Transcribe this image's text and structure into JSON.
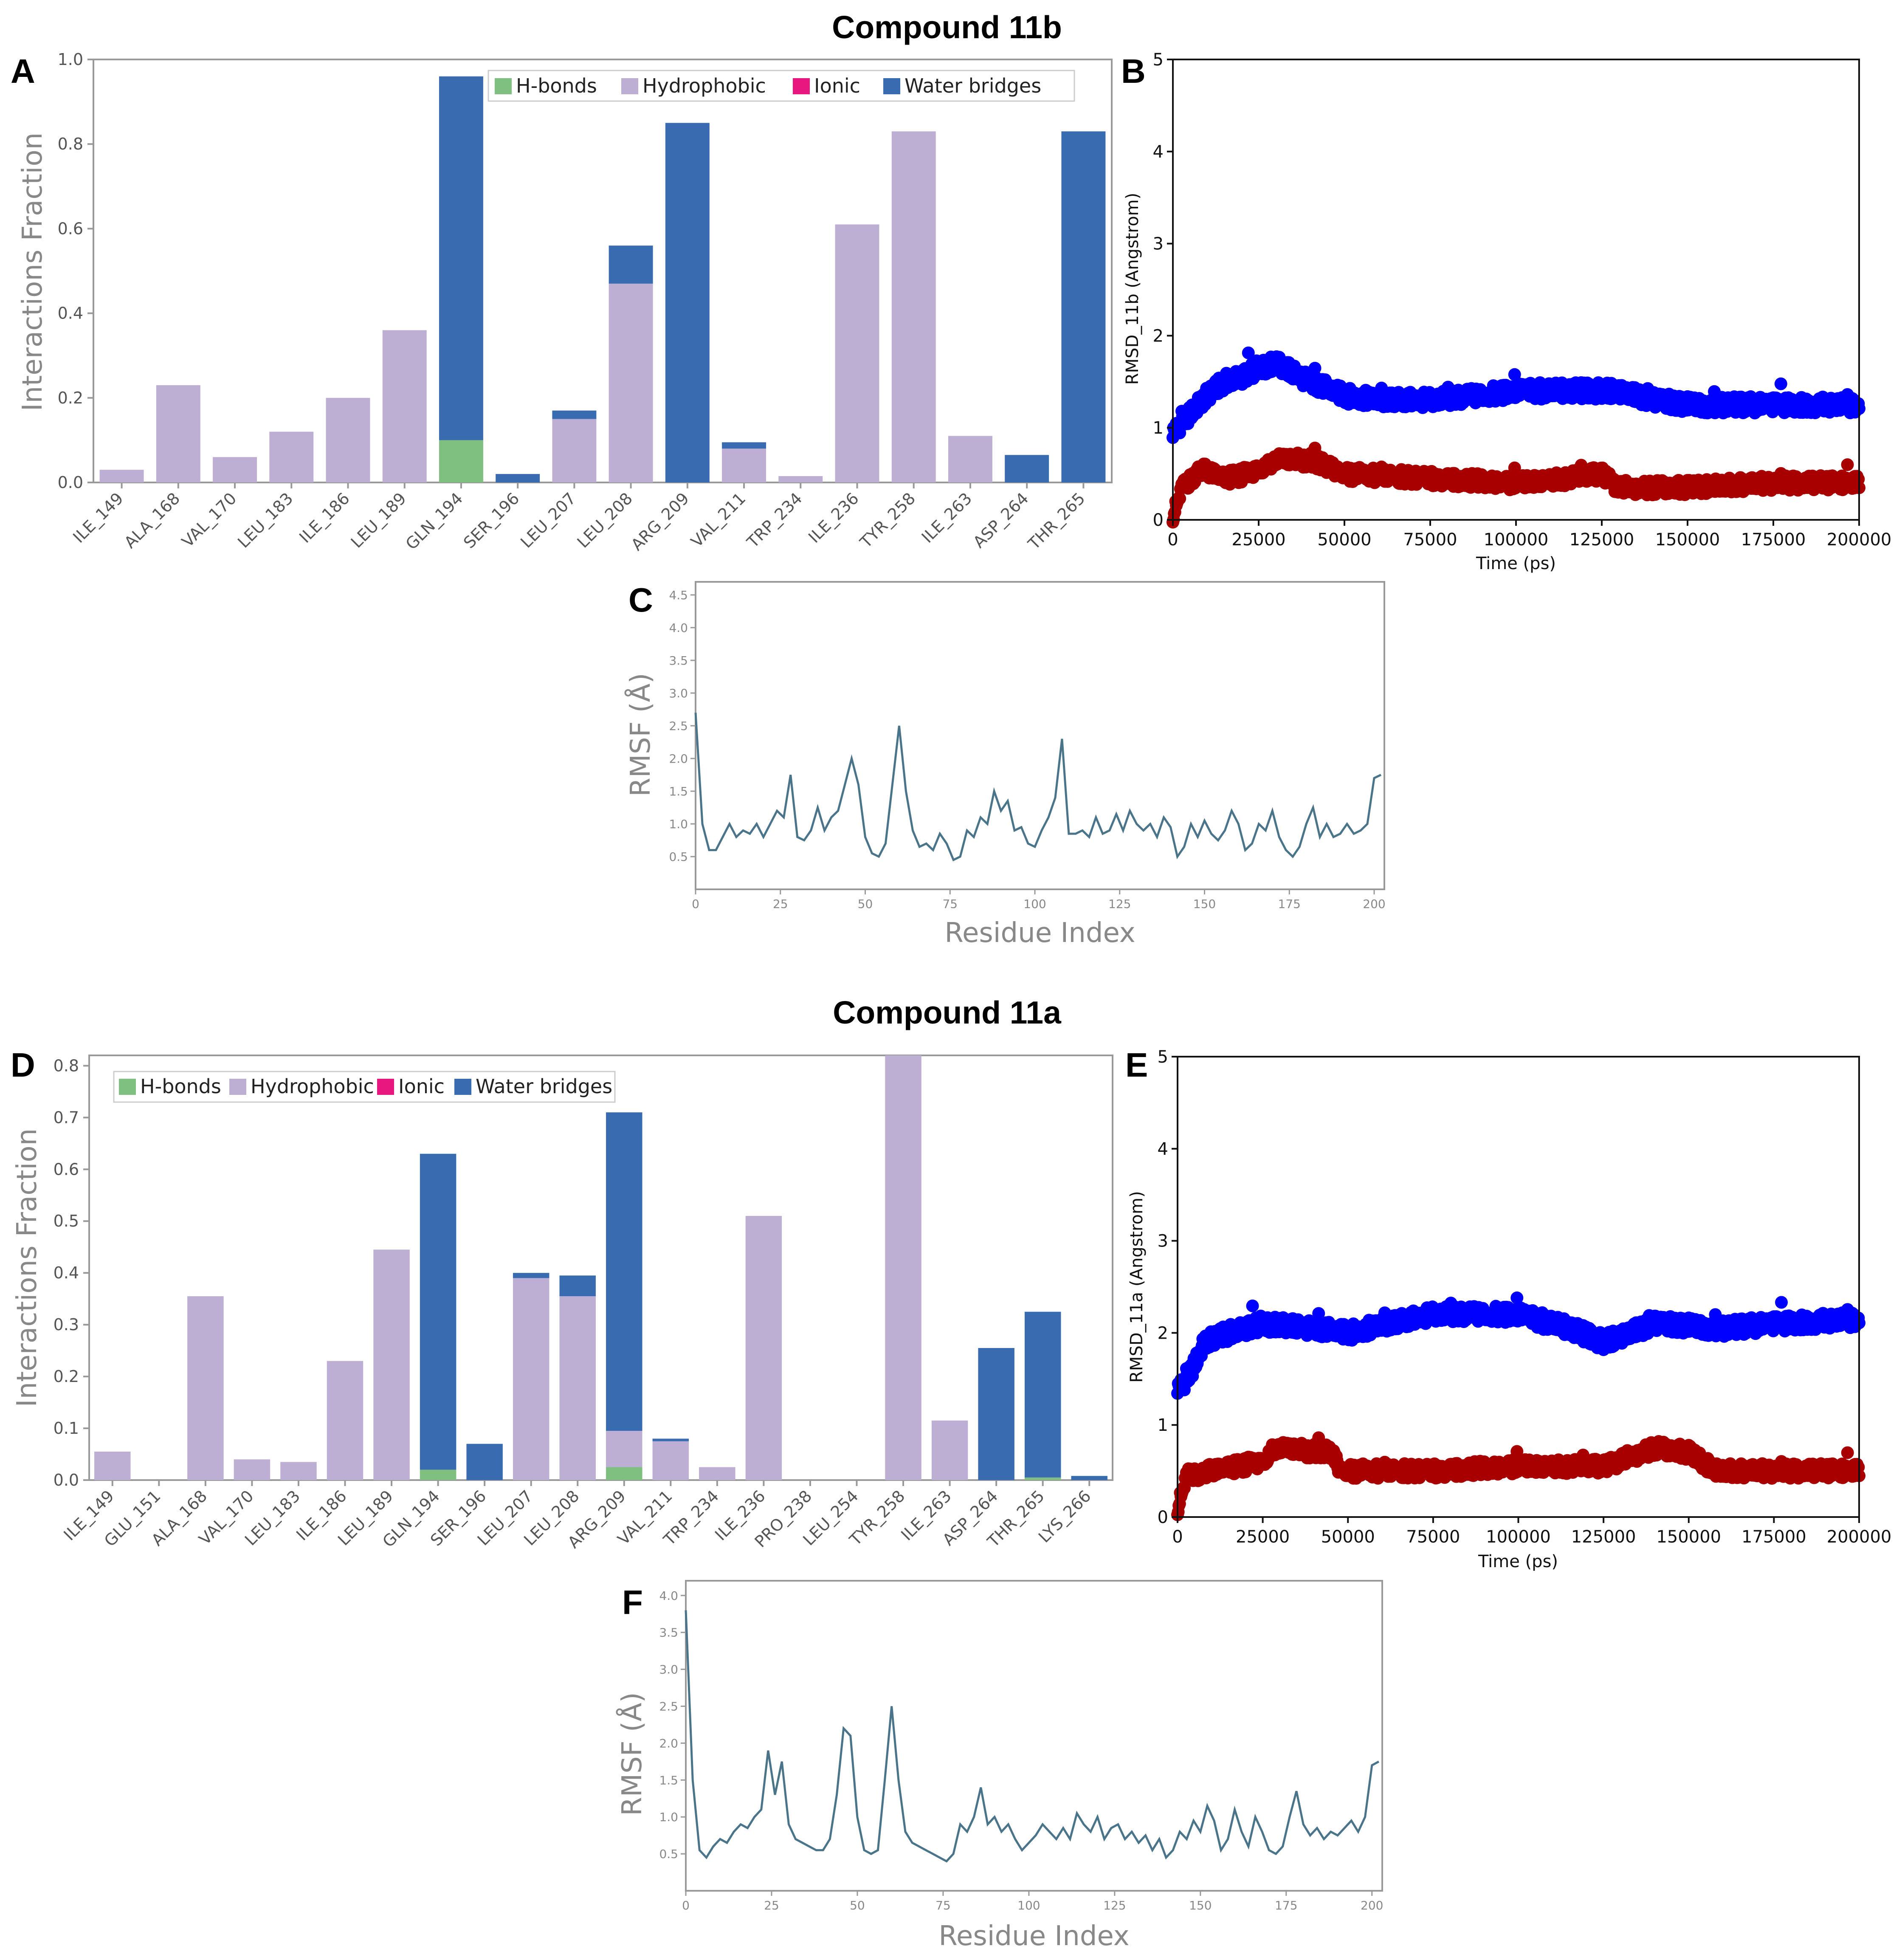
{
  "titles": {
    "top": "Compound 11b",
    "bottom": "Compound 11a"
  },
  "panel_labels": [
    "A",
    "B",
    "C",
    "D",
    "E",
    "F"
  ],
  "legend": {
    "hbonds": "H-bonds",
    "hydrophobic": "Hydrophobic",
    "ionic": "Ionic",
    "water": "Water bridges"
  },
  "colors": {
    "hbonds": "#7fbf7f",
    "hydrophobic": "#bdaed4",
    "ionic": "#e8177f",
    "water": "#386bb0",
    "rmsd_protein": "#0000ff",
    "rmsd_ligand": "#a80000",
    "rmsf_line": "#4a7489"
  },
  "chart_data": [
    {
      "id": "A",
      "type": "bar",
      "stacked": true,
      "ylabel": "Interactions Fraction",
      "xlabel": "",
      "ylim": [
        0,
        1.0
      ],
      "yticks": [
        "0.0",
        "0.2",
        "0.4",
        "0.6",
        "0.8",
        "1.0"
      ],
      "categories": [
        "ILE_149",
        "ALA_168",
        "VAL_170",
        "LEU_183",
        "ILE_186",
        "LEU_189",
        "GLN_194",
        "SER_196",
        "LEU_207",
        "LEU_208",
        "ARG_209",
        "VAL_211",
        "TRP_234",
        "ILE_236",
        "TYR_258",
        "ILE_263",
        "ASP_264",
        "THR_265"
      ],
      "series": [
        {
          "name": "H-bonds",
          "values": [
            0,
            0,
            0,
            0,
            0,
            0,
            0.1,
            0,
            0,
            0,
            0,
            0,
            0,
            0,
            0,
            0,
            0,
            0
          ]
        },
        {
          "name": "Hydrophobic",
          "values": [
            0.03,
            0.23,
            0.06,
            0.12,
            0.2,
            0.36,
            0,
            0,
            0.15,
            0.47,
            0,
            0.08,
            0.015,
            0.61,
            0.83,
            0.11,
            0,
            0
          ]
        },
        {
          "name": "Ionic",
          "values": [
            0,
            0,
            0,
            0,
            0,
            0,
            0,
            0,
            0,
            0,
            0,
            0,
            0,
            0,
            0,
            0,
            0,
            0
          ]
        },
        {
          "name": "Water bridges",
          "values": [
            0,
            0,
            0,
            0,
            0,
            0,
            0.86,
            0.02,
            0.02,
            0.09,
            0.85,
            0.015,
            0,
            0,
            0,
            0,
            0.065,
            0.83
          ]
        }
      ]
    },
    {
      "id": "B",
      "type": "scatter",
      "xlabel": "Time (ps)",
      "ylabel": "RMSD_11b (Angstrom)",
      "xlim": [
        0,
        200000
      ],
      "ylim": [
        0,
        5
      ],
      "xticks": [
        "0",
        "25000",
        "50000",
        "75000",
        "100000",
        "125000",
        "150000",
        "175000",
        "200000"
      ],
      "yticks": [
        "0",
        "1",
        "2",
        "3",
        "4",
        "5"
      ],
      "series": [
        {
          "name": "protein",
          "profile": [
            [
              0,
              0.95
            ],
            [
              5000,
              1.15
            ],
            [
              10000,
              1.35
            ],
            [
              15000,
              1.5
            ],
            [
              20000,
              1.55
            ],
            [
              25000,
              1.65
            ],
            [
              30000,
              1.7
            ],
            [
              35000,
              1.6
            ],
            [
              40000,
              1.5
            ],
            [
              50000,
              1.35
            ],
            [
              60000,
              1.3
            ],
            [
              75000,
              1.3
            ],
            [
              90000,
              1.35
            ],
            [
              100000,
              1.4
            ],
            [
              115000,
              1.4
            ],
            [
              125000,
              1.4
            ],
            [
              130000,
              1.4
            ],
            [
              140000,
              1.3
            ],
            [
              150000,
              1.25
            ],
            [
              175000,
              1.25
            ],
            [
              200000,
              1.25
            ]
          ],
          "noise": 0.09
        },
        {
          "name": "ligand",
          "profile": [
            [
              0,
              0.05
            ],
            [
              3000,
              0.35
            ],
            [
              8000,
              0.55
            ],
            [
              15000,
              0.45
            ],
            [
              22000,
              0.5
            ],
            [
              30000,
              0.65
            ],
            [
              40000,
              0.65
            ],
            [
              50000,
              0.5
            ],
            [
              75000,
              0.45
            ],
            [
              100000,
              0.4
            ],
            [
              115000,
              0.45
            ],
            [
              125000,
              0.5
            ],
            [
              130000,
              0.35
            ],
            [
              150000,
              0.35
            ],
            [
              175000,
              0.4
            ],
            [
              200000,
              0.4
            ]
          ],
          "noise": 0.08
        }
      ]
    },
    {
      "id": "C",
      "type": "line",
      "xlabel": "Residue Index",
      "ylabel": "RMSF (Å)",
      "xlim": [
        0,
        203
      ],
      "ylim": [
        0,
        4.7
      ],
      "xticks": [
        "0",
        "25",
        "50",
        "75",
        "100",
        "125",
        "150",
        "175",
        "200"
      ],
      "yticks": [
        "0.5",
        "1.0",
        "1.5",
        "2.0",
        "2.5",
        "3.0",
        "3.5",
        "4.0",
        "4.5"
      ],
      "x": [
        0,
        2,
        4,
        6,
        8,
        10,
        12,
        14,
        16,
        18,
        20,
        22,
        24,
        26,
        28,
        30,
        32,
        34,
        36,
        38,
        40,
        42,
        44,
        46,
        48,
        50,
        52,
        54,
        56,
        58,
        60,
        62,
        64,
        66,
        68,
        70,
        72,
        74,
        76,
        78,
        80,
        82,
        84,
        86,
        88,
        90,
        92,
        94,
        96,
        98,
        100,
        102,
        104,
        106,
        108,
        110,
        112,
        114,
        116,
        118,
        120,
        122,
        124,
        126,
        128,
        130,
        132,
        134,
        136,
        138,
        140,
        142,
        144,
        146,
        148,
        150,
        152,
        154,
        156,
        158,
        160,
        162,
        164,
        166,
        168,
        170,
        172,
        174,
        176,
        178,
        180,
        182,
        184,
        186,
        188,
        190,
        192,
        194,
        196,
        198,
        200,
        202
      ],
      "values": [
        2.7,
        1.0,
        0.6,
        0.6,
        0.8,
        1.0,
        0.8,
        0.9,
        0.85,
        1.0,
        0.8,
        1.0,
        1.2,
        1.1,
        1.75,
        0.8,
        0.75,
        0.9,
        1.25,
        0.9,
        1.1,
        1.2,
        1.6,
        2.0,
        1.6,
        0.8,
        0.55,
        0.5,
        0.7,
        1.6,
        2.5,
        1.5,
        0.9,
        0.65,
        0.7,
        0.6,
        0.85,
        0.7,
        0.45,
        0.5,
        0.9,
        0.8,
        1.1,
        1.0,
        1.5,
        1.2,
        1.35,
        0.9,
        0.95,
        0.7,
        0.65,
        0.9,
        1.1,
        1.4,
        2.3,
        0.85,
        0.85,
        0.9,
        0.8,
        1.1,
        0.85,
        0.9,
        1.15,
        0.9,
        1.2,
        1.0,
        0.9,
        1.0,
        0.8,
        1.1,
        0.95,
        0.5,
        0.65,
        1.0,
        0.8,
        1.05,
        0.85,
        0.75,
        0.9,
        1.2,
        1.0,
        0.6,
        0.7,
        1.0,
        0.9,
        1.2,
        0.8,
        0.6,
        0.5,
        0.65,
        1.0,
        1.25,
        0.8,
        1.0,
        0.8,
        0.85,
        1.0,
        0.85,
        0.9,
        1.0,
        1.7,
        1.75
      ]
    },
    {
      "id": "D",
      "type": "bar",
      "stacked": true,
      "ylabel": "Interactions Fraction",
      "xlabel": "",
      "ylim": [
        0,
        0.82
      ],
      "yticks": [
        "0.0",
        "0.1",
        "0.2",
        "0.3",
        "0.4",
        "0.5",
        "0.6",
        "0.7",
        "0.8"
      ],
      "categories": [
        "ILE_149",
        "GLU_151",
        "ALA_168",
        "VAL_170",
        "LEU_183",
        "ILE_186",
        "LEU_189",
        "GLN_194",
        "SER_196",
        "LEU_207",
        "LEU_208",
        "ARG_209",
        "VAL_211",
        "TRP_234",
        "ILE_236",
        "PRO_238",
        "LEU_254",
        "TYR_258",
        "ILE_263",
        "ASP_264",
        "THR_265",
        "LYS_266"
      ],
      "series": [
        {
          "name": "H-bonds",
          "values": [
            0,
            0,
            0,
            0,
            0,
            0,
            0,
            0.02,
            0,
            0,
            0,
            0.025,
            0,
            0,
            0,
            0,
            0,
            0,
            0,
            0,
            0.005,
            0
          ]
        },
        {
          "name": "Hydrophobic",
          "values": [
            0.055,
            0,
            0.355,
            0.04,
            0.035,
            0.23,
            0.445,
            0,
            0,
            0.39,
            0.355,
            0.07,
            0.075,
            0.025,
            0.51,
            0,
            0,
            0.82,
            0.115,
            0,
            0,
            0
          ]
        },
        {
          "name": "Ionic",
          "values": [
            0,
            0,
            0,
            0,
            0,
            0,
            0,
            0,
            0,
            0,
            0,
            0,
            0,
            0,
            0,
            0,
            0,
            0,
            0,
            0,
            0,
            0
          ]
        },
        {
          "name": "Water bridges",
          "values": [
            0,
            0,
            0,
            0,
            0,
            0,
            0,
            0.61,
            0.07,
            0.01,
            0.04,
            0.615,
            0.005,
            0,
            0,
            0,
            0,
            0,
            0,
            0.255,
            0.32,
            0.008
          ]
        }
      ]
    },
    {
      "id": "E",
      "type": "scatter",
      "xlabel": "Time (ps)",
      "ylabel": "RMSD_11a (Angstrom)",
      "xlim": [
        0,
        200000
      ],
      "ylim": [
        0,
        5
      ],
      "xticks": [
        "0",
        "25000",
        "50000",
        "75000",
        "100000",
        "125000",
        "150000",
        "175000",
        "200000"
      ],
      "yticks": [
        "0",
        "1",
        "2",
        "3",
        "4",
        "5"
      ],
      "series": [
        {
          "name": "protein",
          "profile": [
            [
              0,
              1.4
            ],
            [
              3000,
              1.5
            ],
            [
              8000,
              1.9
            ],
            [
              15000,
              2.0
            ],
            [
              25000,
              2.1
            ],
            [
              40000,
              2.05
            ],
            [
              50000,
              2.0
            ],
            [
              75000,
              2.2
            ],
            [
              100000,
              2.2
            ],
            [
              115000,
              2.05
            ],
            [
              125000,
              1.9
            ],
            [
              140000,
              2.1
            ],
            [
              160000,
              2.05
            ],
            [
              175000,
              2.1
            ],
            [
              200000,
              2.15
            ]
          ],
          "noise": 0.09
        },
        {
          "name": "ligand",
          "profile": [
            [
              0,
              0.1
            ],
            [
              3000,
              0.45
            ],
            [
              10000,
              0.5
            ],
            [
              25000,
              0.6
            ],
            [
              28000,
              0.75
            ],
            [
              45000,
              0.7
            ],
            [
              48000,
              0.5
            ],
            [
              75000,
              0.5
            ],
            [
              100000,
              0.55
            ],
            [
              125000,
              0.55
            ],
            [
              140000,
              0.75
            ],
            [
              150000,
              0.7
            ],
            [
              158000,
              0.5
            ],
            [
              175000,
              0.5
            ],
            [
              200000,
              0.5
            ]
          ],
          "noise": 0.08
        }
      ]
    },
    {
      "id": "F",
      "type": "line",
      "xlabel": "Residue Index",
      "ylabel": "RMSF (Å)",
      "xlim": [
        0,
        203
      ],
      "ylim": [
        0,
        4.2
      ],
      "xticks": [
        "0",
        "25",
        "50",
        "75",
        "100",
        "125",
        "150",
        "175",
        "200"
      ],
      "yticks": [
        "0.5",
        "1.0",
        "1.5",
        "2.0",
        "2.5",
        "3.0",
        "3.5",
        "4.0"
      ],
      "x": [
        0,
        2,
        4,
        6,
        8,
        10,
        12,
        14,
        16,
        18,
        20,
        22,
        24,
        26,
        28,
        30,
        32,
        34,
        36,
        38,
        40,
        42,
        44,
        46,
        48,
        50,
        52,
        54,
        56,
        58,
        60,
        62,
        64,
        66,
        68,
        70,
        72,
        74,
        76,
        78,
        80,
        82,
        84,
        86,
        88,
        90,
        92,
        94,
        96,
        98,
        100,
        102,
        104,
        106,
        108,
        110,
        112,
        114,
        116,
        118,
        120,
        122,
        124,
        126,
        128,
        130,
        132,
        134,
        136,
        138,
        140,
        142,
        144,
        146,
        148,
        150,
        152,
        154,
        156,
        158,
        160,
        162,
        164,
        166,
        168,
        170,
        172,
        174,
        176,
        178,
        180,
        182,
        184,
        186,
        188,
        190,
        192,
        194,
        196,
        198,
        200,
        202
      ],
      "values": [
        3.8,
        1.5,
        0.55,
        0.45,
        0.6,
        0.7,
        0.65,
        0.8,
        0.9,
        0.85,
        1.0,
        1.1,
        1.9,
        1.3,
        1.75,
        0.9,
        0.7,
        0.65,
        0.6,
        0.55,
        0.55,
        0.7,
        1.3,
        2.2,
        2.1,
        1.0,
        0.55,
        0.5,
        0.55,
        1.5,
        2.5,
        1.5,
        0.8,
        0.65,
        0.6,
        0.55,
        0.5,
        0.45,
        0.4,
        0.5,
        0.9,
        0.8,
        1.0,
        1.4,
        0.9,
        1.0,
        0.8,
        0.9,
        0.7,
        0.55,
        0.65,
        0.75,
        0.9,
        0.8,
        0.7,
        0.85,
        0.7,
        1.05,
        0.9,
        0.8,
        1.0,
        0.7,
        0.85,
        0.9,
        0.7,
        0.8,
        0.65,
        0.75,
        0.55,
        0.7,
        0.45,
        0.55,
        0.8,
        0.7,
        0.95,
        0.8,
        1.15,
        0.95,
        0.55,
        0.7,
        1.1,
        0.8,
        0.6,
        1.0,
        0.8,
        0.55,
        0.5,
        0.6,
        1.0,
        1.35,
        0.9,
        0.75,
        0.85,
        0.7,
        0.8,
        0.75,
        0.85,
        0.95,
        0.8,
        1.0,
        1.7,
        1.75
      ]
    }
  ]
}
